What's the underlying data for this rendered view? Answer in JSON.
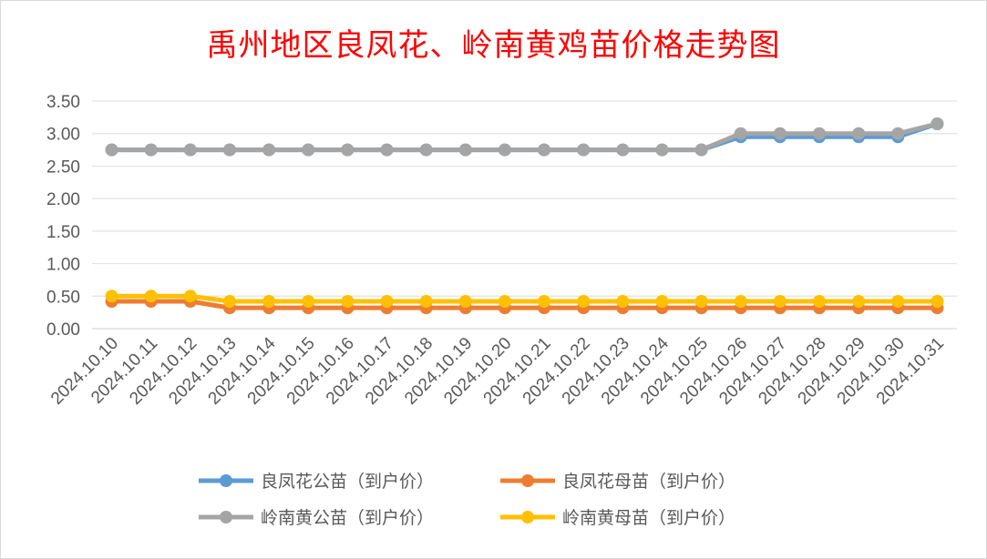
{
  "chart_data": {
    "type": "line",
    "title": "禹州地区良凤花、岭南黄鸡苗价格走势图",
    "categories": [
      "2024.10.10",
      "2024.10.11",
      "2024.10.12",
      "2024.10.13",
      "2024.10.14",
      "2024.10.15",
      "2024.10.16",
      "2024.10.17",
      "2024.10.18",
      "2024.10.19",
      "2024.10.20",
      "2024.10.21",
      "2024.10.22",
      "2024.10.23",
      "2024.10.24",
      "2024.10.25",
      "2024.10.26",
      "2024.10.27",
      "2024.10.28",
      "2024.10.29",
      "2024.10.30",
      "2024.10.31"
    ],
    "y_ticks": [
      "0.00",
      "0.50",
      "1.00",
      "1.50",
      "2.00",
      "2.50",
      "3.00",
      "3.50"
    ],
    "ylim": [
      0,
      3.5
    ],
    "grid": true,
    "legend_position": "bottom",
    "series": [
      {
        "name": "良凤花公苗（到户价）",
        "color": "#5b9bd5",
        "values": [
          2.75,
          2.75,
          2.75,
          2.75,
          2.75,
          2.75,
          2.75,
          2.75,
          2.75,
          2.75,
          2.75,
          2.75,
          2.75,
          2.75,
          2.75,
          2.75,
          2.95,
          2.95,
          2.95,
          2.95,
          2.95,
          3.15
        ]
      },
      {
        "name": "良凤花母苗（到户价）",
        "color": "#ed7d31",
        "values": [
          0.42,
          0.42,
          0.42,
          0.32,
          0.32,
          0.32,
          0.32,
          0.32,
          0.32,
          0.32,
          0.32,
          0.32,
          0.32,
          0.32,
          0.32,
          0.32,
          0.32,
          0.32,
          0.32,
          0.32,
          0.32,
          0.32
        ]
      },
      {
        "name": "岭南黄公苗（到户价）",
        "color": "#a5a5a5",
        "values": [
          2.75,
          2.75,
          2.75,
          2.75,
          2.75,
          2.75,
          2.75,
          2.75,
          2.75,
          2.75,
          2.75,
          2.75,
          2.75,
          2.75,
          2.75,
          2.75,
          3.0,
          3.0,
          3.0,
          3.0,
          3.0,
          3.15
        ]
      },
      {
        "name": "岭南黄母苗（到户价）",
        "color": "#ffc000",
        "values": [
          0.5,
          0.5,
          0.5,
          0.42,
          0.42,
          0.42,
          0.42,
          0.42,
          0.42,
          0.42,
          0.42,
          0.42,
          0.42,
          0.42,
          0.42,
          0.42,
          0.42,
          0.42,
          0.42,
          0.42,
          0.42,
          0.42
        ]
      }
    ]
  }
}
